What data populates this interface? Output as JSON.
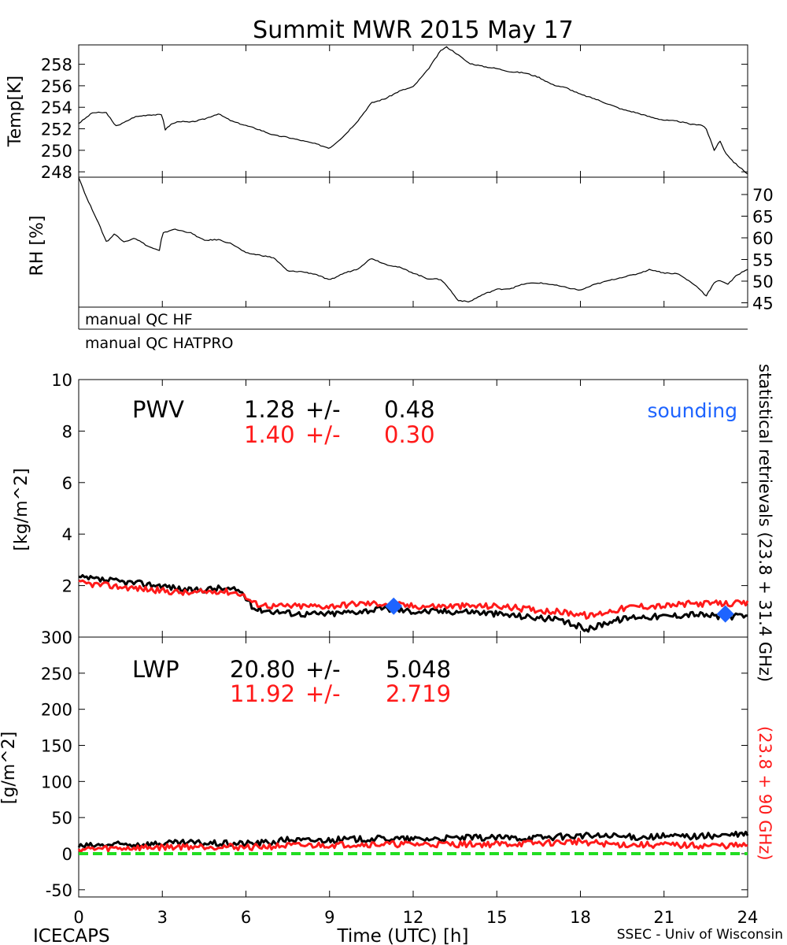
{
  "title": "Summit MWR 2015 May 17",
  "footer": {
    "left": "ICECAPS",
    "center": "Time (UTC) [h]",
    "right": "SSEC - Univ of Wisconsin"
  },
  "qc": {
    "hf": "manual QC HF",
    "hatpro": "manual QC HATPRO"
  },
  "right_label": {
    "black": "statistical retrievals (23.8 + 31.4 GHz)",
    "red": "(23.8 + 90 GHz)"
  },
  "colors": {
    "black": "#000000",
    "red": "#ff1a1a",
    "blue": "#1e64ff",
    "green": "#22dd22"
  },
  "chart_data": [
    {
      "name": "temp",
      "type": "line",
      "ylabel": "Temp[K]",
      "xlim": [
        0,
        24
      ],
      "ylim": [
        247.5,
        259.8
      ],
      "yticks": [
        "248",
        "250",
        "252",
        "254",
        "256",
        "258"
      ],
      "x": [
        0,
        0.5,
        1,
        1.3,
        1.5,
        2,
        2.5,
        3,
        3.1,
        3.3,
        3.6,
        4,
        4.5,
        5,
        5.5,
        6,
        6.5,
        7,
        7.5,
        8,
        8.5,
        9,
        9.5,
        10,
        10.5,
        11,
        11.5,
        12,
        12.5,
        13,
        13.2,
        13.5,
        14,
        14.5,
        15,
        15.5,
        16,
        16.5,
        17,
        17.5,
        18,
        18.5,
        19,
        19.5,
        20,
        20.5,
        21,
        21.5,
        22,
        22.3,
        22.5,
        22.8,
        23,
        23.2,
        23.5,
        24
      ],
      "series": [
        {
          "name": "Temp",
          "values": [
            252.5,
            253.5,
            253.5,
            252.3,
            252.4,
            253.1,
            253.3,
            253.3,
            251.9,
            252.4,
            252.7,
            252.6,
            252.9,
            253.4,
            252.7,
            252.3,
            251.9,
            251.4,
            251.2,
            250.9,
            250.6,
            250.2,
            251.3,
            252.7,
            254.4,
            254.8,
            255.5,
            255.9,
            257.4,
            259.3,
            259.6,
            259.1,
            258.1,
            257.8,
            257.6,
            257.3,
            257.2,
            256.8,
            256.1,
            255.8,
            255.2,
            254.8,
            254.3,
            253.8,
            253.5,
            253.1,
            252.8,
            252.7,
            252.4,
            252.4,
            252.1,
            250.0,
            250.9,
            249.8,
            248.9,
            247.8
          ]
        }
      ]
    },
    {
      "name": "rh",
      "type": "line",
      "ylabel": "RH [%]",
      "xlim": [
        0,
        24
      ],
      "ylim": [
        44,
        74
      ],
      "yticks": [
        "45",
        "50",
        "55",
        "60",
        "65",
        "70"
      ],
      "x": [
        0,
        0.3,
        0.6,
        1,
        1.3,
        1.6,
        2,
        2.5,
        2.9,
        3,
        3.2,
        3.4,
        4,
        4.5,
        5,
        5.5,
        6,
        6.5,
        7,
        7.5,
        8,
        8.5,
        9,
        9.5,
        10,
        10.5,
        11,
        11.5,
        12,
        12.5,
        13,
        13.3,
        13.6,
        14,
        14.5,
        15,
        15.5,
        16,
        16.5,
        17,
        17.5,
        18,
        18.5,
        19,
        19.5,
        20,
        20.5,
        21,
        21.5,
        22,
        22.3,
        22.5,
        22.8,
        23,
        23.3,
        23.6,
        24
      ],
      "series": [
        {
          "name": "RH",
          "values": [
            74,
            69,
            65,
            59,
            61,
            59,
            60,
            58,
            57,
            61,
            61.5,
            62,
            61.2,
            59.4,
            59.6,
            58.6,
            56.5,
            56,
            55.4,
            52.3,
            52.2,
            51.6,
            50.2,
            51.8,
            52.8,
            55.3,
            53.9,
            53.2,
            51.9,
            50.6,
            50.4,
            48.2,
            45.6,
            45.2,
            46.9,
            48.1,
            48.3,
            49.4,
            49.6,
            49.2,
            48.5,
            47.9,
            49.2,
            50.1,
            50.9,
            51.6,
            52.7,
            51.9,
            51.7,
            49.6,
            48.1,
            46.5,
            49.6,
            50.2,
            49.3,
            51.3,
            52.8
          ]
        }
      ]
    },
    {
      "name": "pwv",
      "type": "line",
      "ylabel": "[kg/m^2]",
      "label": "PWV",
      "xlim": [
        0,
        24
      ],
      "ylim": [
        0,
        10
      ],
      "yticks": [
        "0",
        "2",
        "4",
        "6",
        "8",
        "10"
      ],
      "stats": [
        {
          "mean": "1.28",
          "pm": "+/-",
          "sd": "0.48",
          "color": "#000000"
        },
        {
          "mean": "1.40",
          "pm": "+/-",
          "sd": "0.30",
          "color": "#ff1a1a"
        }
      ],
      "sounding_label": "sounding",
      "x": [
        0,
        1,
        2,
        3,
        4,
        5,
        5.8,
        6.3,
        7,
        8,
        9,
        10,
        11,
        12,
        13,
        14,
        15,
        16,
        17,
        18,
        18.3,
        19,
        20,
        21,
        22,
        23,
        24
      ],
      "series": [
        {
          "name": "statistical retrievals (23.8 + 31.4 GHz)",
          "values": [
            2.3,
            2.2,
            2.1,
            2.0,
            1.8,
            1.9,
            1.8,
            1.1,
            1.0,
            0.9,
            0.9,
            1.0,
            1.1,
            1.0,
            1.0,
            1.0,
            0.9,
            0.8,
            0.7,
            0.4,
            0.3,
            0.6,
            0.8,
            0.8,
            0.9,
            0.8,
            0.8
          ]
        },
        {
          "name": "(23.8 + 90 GHz)",
          "values": [
            2.1,
            2.0,
            1.9,
            1.8,
            1.7,
            1.8,
            1.7,
            1.3,
            1.2,
            1.2,
            1.2,
            1.3,
            1.3,
            1.2,
            1.2,
            1.2,
            1.2,
            1.1,
            1.0,
            0.9,
            0.8,
            1.0,
            1.2,
            1.2,
            1.3,
            1.3,
            1.3
          ]
        }
      ],
      "soundings": [
        {
          "x": 11.3,
          "y": 1.2
        },
        {
          "x": 23.2,
          "y": 0.9
        }
      ]
    },
    {
      "name": "lwp",
      "type": "line",
      "ylabel": "[g/m^2]",
      "label": "LWP",
      "xlabel": "Time (UTC) [h]",
      "xlim": [
        0,
        24
      ],
      "ylim": [
        -60,
        300
      ],
      "yticks": [
        "-50",
        "0",
        "50",
        "100",
        "150",
        "200",
        "250",
        "300"
      ],
      "xticks": [
        "0",
        "3",
        "6",
        "9",
        "12",
        "15",
        "18",
        "21",
        "24"
      ],
      "stats": [
        {
          "mean": "20.80",
          "pm": "+/-",
          "sd": "5.048",
          "color": "#000000"
        },
        {
          "mean": "11.92",
          "pm": "+/-",
          "sd": "2.719",
          "color": "#ff1a1a"
        }
      ],
      "x": [
        0,
        1,
        2,
        3,
        4,
        5,
        6,
        7,
        7.5,
        8,
        9,
        10,
        11,
        12,
        13,
        14,
        15,
        16,
        17,
        18,
        19,
        20,
        21,
        22,
        23,
        24
      ],
      "series": [
        {
          "name": "statistical retrievals (23.8 + 31.4 GHz)",
          "values": [
            10,
            12,
            13,
            14,
            15,
            14,
            14,
            16,
            20,
            18,
            19,
            20,
            21,
            20,
            21,
            22,
            22,
            22,
            23,
            25,
            24,
            23,
            24,
            24,
            25,
            27
          ]
        },
        {
          "name": "(23.8 + 90 GHz)",
          "values": [
            6,
            7,
            8,
            9,
            10,
            10,
            9,
            10,
            11,
            11,
            12,
            13,
            13,
            13,
            13,
            13,
            13,
            14,
            15,
            17,
            13,
            12,
            12,
            11,
            11,
            11
          ]
        }
      ],
      "zero_line": 0
    }
  ]
}
